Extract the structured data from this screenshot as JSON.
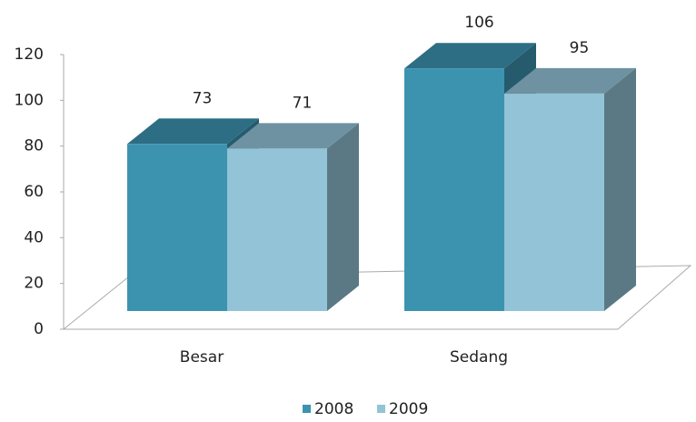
{
  "chart_data": {
    "type": "bar3d",
    "categories": [
      "Besar",
      "Sedang"
    ],
    "series": [
      {
        "name": "2008",
        "color": "#3c93b0",
        "values": [
          73,
          106
        ]
      },
      {
        "name": "2009",
        "color": "#93c3d6",
        "values": [
          71,
          95
        ]
      }
    ],
    "ylim": [
      0,
      120
    ],
    "yticks": [
      0,
      20,
      40,
      60,
      80,
      100,
      120
    ],
    "legend": "bottom"
  }
}
